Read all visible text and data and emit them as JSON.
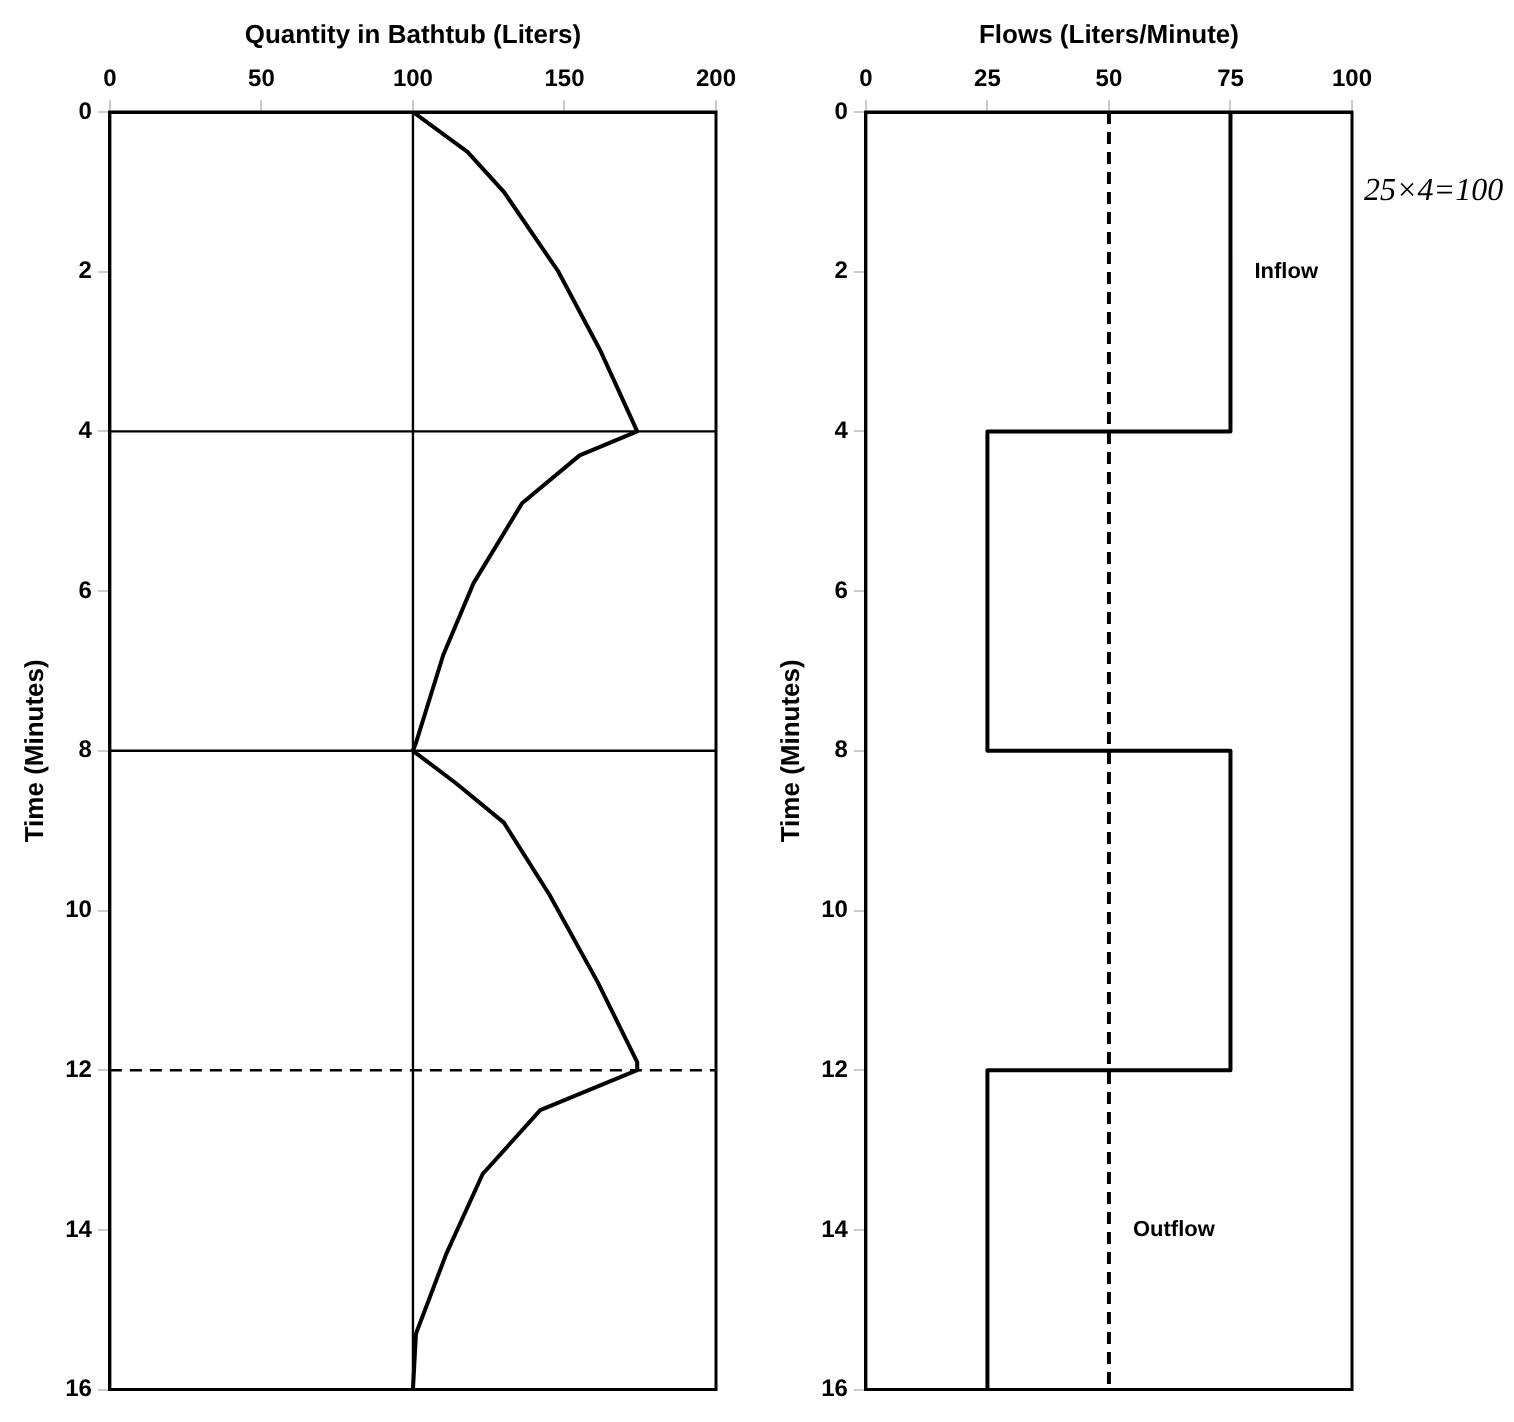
{
  "chart_data": [
    {
      "type": "line",
      "xlabel": "Quantity in Bathtub (Liters)",
      "ylabel": "Time (Minutes)",
      "ylim": [
        16,
        0
      ],
      "yticks": [
        0,
        2,
        4,
        6,
        8,
        10,
        12,
        14,
        16
      ],
      "xlim": [
        0,
        200
      ],
      "xticks": [
        0,
        50,
        100,
        150,
        200
      ],
      "grid": false,
      "series": [
        {
          "color": "#000000",
          "values": [
            0,
            0.5,
            1,
            2,
            3,
            4,
            4.3,
            4.9,
            5.9,
            6.8,
            7.9,
            8,
            8.4,
            8.9,
            9.8,
            10.9,
            11.9,
            12,
            12.5,
            13.3,
            14.3,
            15.3,
            16
          ],
          "x": [
            100,
            118,
            130,
            148,
            162,
            174,
            155,
            136,
            120,
            110,
            101,
            100,
            114,
            130,
            145,
            161,
            174,
            174,
            142,
            123,
            111,
            101,
            100
          ]
        }
      ],
      "ref_lines": [
        {
          "axis": "y",
          "value": 4
        },
        {
          "axis": "y",
          "value": 8
        },
        {
          "axis": "y",
          "value": 12,
          "line_style": "dashed"
        },
        {
          "axis": "x",
          "value": 100
        }
      ]
    },
    {
      "type": "step",
      "xlabel": "Flows (Liters/Minute)",
      "ylabel": "Time (Minutes)",
      "ylim": [
        16,
        0
      ],
      "yticks": [
        0,
        2,
        4,
        6,
        8,
        10,
        12,
        14,
        16
      ],
      "xlim": [
        0,
        100
      ],
      "xticks": [
        0,
        25,
        50,
        75,
        100
      ],
      "grid": false,
      "series": [
        {
          "name": "Inflow",
          "color": "#000000",
          "values": [
            0,
            4,
            8,
            12,
            16
          ],
          "x": [
            75,
            25,
            75,
            25,
            25
          ]
        },
        {
          "name": "Outflow",
          "color": "#000000",
          "values": [
            0,
            4,
            8,
            12,
            16
          ],
          "x": [
            50,
            50,
            50,
            50,
            50
          ],
          "line_style": "dashed"
        }
      ],
      "annotations": [
        "25×4=100"
      ]
    }
  ]
}
